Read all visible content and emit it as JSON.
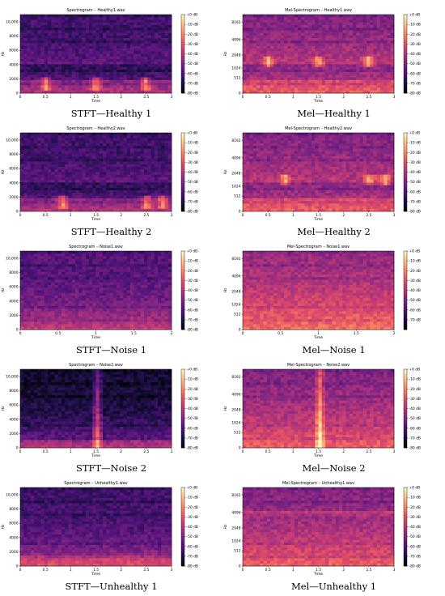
{
  "figure": {
    "panels": [
      {
        "id": "stft-healthy1",
        "kind": "stft",
        "title": "Spectrogram – Healthy1.wav",
        "caption": "STFT—Healthy 1",
        "duration": 3,
        "xticks": [
          "0",
          "0.5",
          "1",
          "1.5",
          "2",
          "2.5",
          "3"
        ],
        "yticks": [
          "0",
          "2000",
          "4000",
          "6000",
          "8000",
          "10,000"
        ],
        "xlabel": "Time",
        "ylabel": "Hz",
        "cbar": [
          "+0 dB",
          "-10 dB",
          "-20 dB",
          "-30 dB",
          "-40 dB",
          "-50 dB",
          "-60 dB",
          "-70 dB",
          "-80 dB"
        ]
      },
      {
        "id": "mel-healthy1",
        "kind": "mel",
        "title": "Mel-Spectrogram – Healthy1.wav",
        "caption": "Mel—Healthy 1",
        "duration": 3,
        "xticks": [
          "0",
          "0.5",
          "1",
          "1.5",
          "2",
          "2.5",
          "3"
        ],
        "yticks": [
          "0",
          "512",
          "1024",
          "2048",
          "4096",
          "8192"
        ],
        "xlabel": "Time",
        "ylabel": "Hz",
        "cbar": [
          "+0 dB",
          "-10 dB",
          "-20 dB",
          "-30 dB",
          "-40 dB",
          "-50 dB",
          "-60 dB",
          "-70 dB",
          "-80 dB"
        ]
      },
      {
        "id": "stft-healthy2",
        "kind": "stft",
        "title": "Spectrogram – Healthy2.wav",
        "caption": "STFT—Healthy 2",
        "duration": 3,
        "xticks": [
          "0",
          "0.5",
          "1",
          "1.5",
          "2",
          "2.5",
          "3"
        ],
        "yticks": [
          "0",
          "2000",
          "4000",
          "6000",
          "8000",
          "10,000"
        ],
        "xlabel": "Time",
        "ylabel": "Hz",
        "cbar": [
          "+0 dB",
          "-10 dB",
          "-20 dB",
          "-30 dB",
          "-40 dB",
          "-50 dB",
          "-60 dB",
          "-70 dB",
          "-80 dB"
        ]
      },
      {
        "id": "mel-healthy2",
        "kind": "mel",
        "title": "Mel-Spectrogram – Healthy2.wav",
        "caption": "Mel—Healthy 2",
        "duration": 3,
        "xticks": [
          "0",
          "0.5",
          "1",
          "1.5",
          "2",
          "2.5",
          "3"
        ],
        "yticks": [
          "0",
          "512",
          "1024",
          "2048",
          "4096",
          "8192"
        ],
        "xlabel": "Time",
        "ylabel": "Hz",
        "cbar": [
          "+0 dB",
          "-10 dB",
          "-20 dB",
          "-30 dB",
          "-40 dB",
          "-50 dB",
          "-60 dB",
          "-70 dB",
          "-80 dB"
        ]
      },
      {
        "id": "stft-noise1",
        "kind": "stft",
        "title": "Spectrogram – Noise1.wav",
        "caption": "STFT—Noise 1",
        "duration": 2,
        "xticks": [
          "0",
          "0.5",
          "1",
          "1.5",
          "2"
        ],
        "yticks": [
          "0",
          "2000",
          "4000",
          "6000",
          "8000",
          "10,000"
        ],
        "xlabel": "Time",
        "ylabel": "Hz",
        "cbar": [
          "+0 dB",
          "-10 dB",
          "-20 dB",
          "-30 dB",
          "-40 dB",
          "-50 dB",
          "-60 dB",
          "-70 dB",
          "-80 dB"
        ]
      },
      {
        "id": "mel-noise1",
        "kind": "mel",
        "title": "Mel-Spectrogram – Noise1.wav",
        "caption": "Mel—Noise 1",
        "duration": 2,
        "xticks": [
          "0",
          "0.5",
          "1",
          "1.5",
          "2"
        ],
        "yticks": [
          "0",
          "512",
          "1024",
          "2048",
          "4096",
          "8192"
        ],
        "xlabel": "Time",
        "ylabel": "Hz",
        "cbar": [
          "+0 dB",
          "-10 dB",
          "-20 dB",
          "-30 dB",
          "-40 dB",
          "-50 dB",
          "-60 dB",
          "-70 dB"
        ]
      },
      {
        "id": "stft-noise2",
        "kind": "stft",
        "title": "Spectrogram – Noise2.wav",
        "caption": "STFT—Noise 2",
        "duration": 3,
        "xticks": [
          "0",
          "0.5",
          "1",
          "1.5",
          "2",
          "2.5",
          "3"
        ],
        "yticks": [
          "0",
          "2000",
          "4000",
          "6000",
          "8000",
          "10,000"
        ],
        "xlabel": "Time",
        "ylabel": "Hz",
        "cbar": [
          "+0 dB",
          "-10 dB",
          "-20 dB",
          "-30 dB",
          "-40 dB",
          "-50 dB",
          "-60 dB",
          "-70 dB",
          "-80 dB"
        ]
      },
      {
        "id": "mel-noise2",
        "kind": "mel",
        "title": "Mel-Spectrogram – Noise2.wav",
        "caption": "Mel—Noise 2",
        "duration": 3,
        "xticks": [
          "0",
          "0.5",
          "1",
          "1.5",
          "2",
          "2.5",
          "3"
        ],
        "yticks": [
          "0",
          "512",
          "1024",
          "2048",
          "4096",
          "8192"
        ],
        "xlabel": "Time",
        "ylabel": "Hz",
        "cbar": [
          "+0 dB",
          "-10 dB",
          "-20 dB",
          "-30 dB",
          "-40 dB",
          "-50 dB",
          "-60 dB",
          "-70 dB",
          "-80 dB"
        ]
      },
      {
        "id": "stft-unhealthy1",
        "kind": "stft",
        "title": "Spectrogram – Unhealthy1.wav",
        "caption": "STFT—Unhealthy 1",
        "duration": 3,
        "xticks": [
          "0",
          "0.5",
          "1",
          "1.5",
          "2",
          "2.5",
          "3"
        ],
        "yticks": [
          "0",
          "2000",
          "4000",
          "6000",
          "8000",
          "10,000"
        ],
        "xlabel": "Time",
        "ylabel": "Hz",
        "cbar": [
          "+0 dB",
          "-10 dB",
          "-20 dB",
          "-30 dB",
          "-40 dB",
          "-50 dB",
          "-60 dB",
          "-70 dB",
          "-80 dB"
        ]
      },
      {
        "id": "mel-unhealthy1",
        "kind": "mel",
        "title": "Mel-Spectrogram – Unhealthy1.wav",
        "caption": "Mel—Unhealthy 1",
        "duration": 3,
        "xticks": [
          "0",
          "0.5",
          "1",
          "1.5",
          "2",
          "2.5",
          "3"
        ],
        "yticks": [
          "0",
          "512",
          "1024",
          "2048",
          "4096",
          "8192"
        ],
        "xlabel": "Time",
        "ylabel": "Hz",
        "cbar": [
          "+0 dB",
          "-10 dB",
          "-20 dB",
          "-30 dB",
          "-40 dB",
          "-50 dB",
          "-60 dB",
          "-70 dB",
          "-80 dB"
        ]
      }
    ],
    "colormap": "magma"
  }
}
